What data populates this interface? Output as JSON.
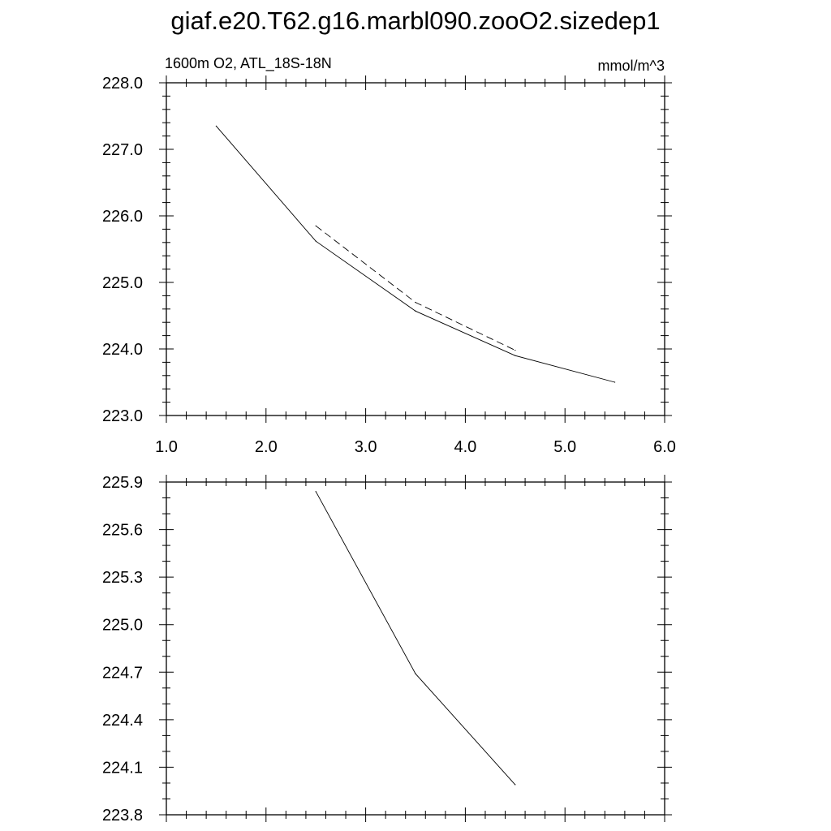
{
  "page": {
    "title": "giaf.e20.T62.g16.marbl090.zooO2.sizedep1"
  },
  "chart_data": [
    {
      "type": "line",
      "left_label": "1600m O2, ATL_18S-18N",
      "right_label": "mmol/m^3",
      "xlim": [
        1.0,
        6.0
      ],
      "ylim": [
        223.0,
        228.0
      ],
      "x_ticks": [
        1.0,
        2.0,
        3.0,
        4.0,
        5.0,
        6.0
      ],
      "x_tick_labels": [
        "1.0",
        "2.0",
        "3.0",
        "4.0",
        "5.0",
        "6.0"
      ],
      "y_ticks": [
        223.0,
        224.0,
        225.0,
        226.0,
        227.0,
        228.0
      ],
      "y_tick_labels": [
        "223.0",
        "224.0",
        "225.0",
        "226.0",
        "227.0",
        "228.0"
      ],
      "grid": false,
      "series": [
        {
          "style": "solid",
          "x": [
            1.5,
            2.5,
            3.5,
            4.5,
            5.5
          ],
          "y": [
            227.35,
            225.62,
            224.57,
            223.9,
            223.5
          ]
        },
        {
          "style": "dashed",
          "x": [
            2.5,
            3.5,
            4.5
          ],
          "y": [
            225.85,
            224.7,
            223.98
          ]
        }
      ]
    },
    {
      "type": "line",
      "xlim": [
        1.0,
        6.0
      ],
      "ylim": [
        223.8,
        225.9
      ],
      "x_ticks": [
        1.0,
        2.0,
        3.0,
        4.0,
        5.0,
        6.0
      ],
      "y_ticks": [
        223.8,
        224.1,
        224.4,
        224.7,
        225.0,
        225.3,
        225.6,
        225.9
      ],
      "y_tick_labels": [
        "223.8",
        "224.1",
        "224.4",
        "224.7",
        "225.0",
        "225.3",
        "225.6",
        "225.9"
      ],
      "grid": false,
      "series": [
        {
          "style": "solid",
          "x": [
            2.5,
            3.5,
            4.5
          ],
          "y": [
            225.84,
            224.69,
            223.99
          ]
        }
      ]
    }
  ]
}
